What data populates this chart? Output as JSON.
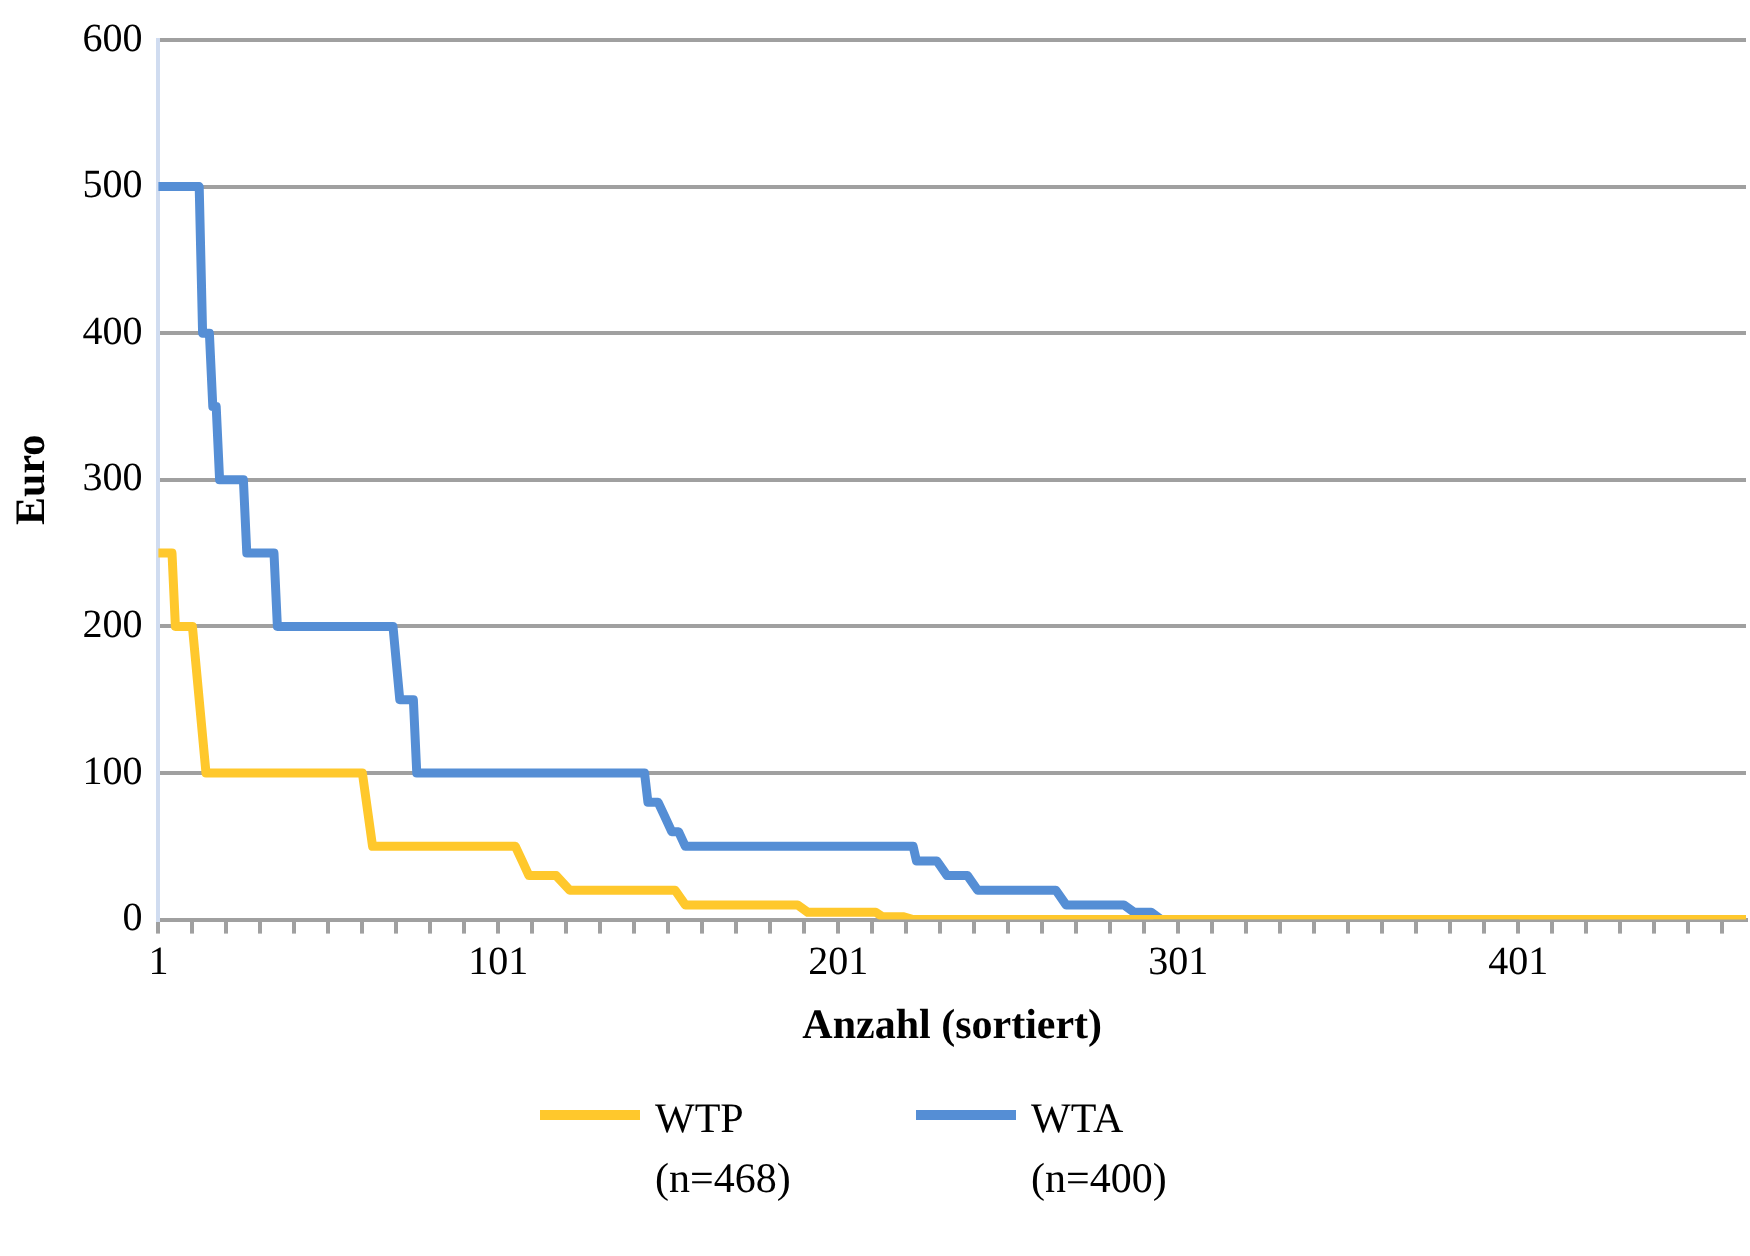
{
  "chart_data": {
    "type": "line",
    "xlabel": "Anzahl (sortiert)",
    "ylabel": "Euro",
    "xlim": [
      1,
      468
    ],
    "xticks": [
      1,
      {
        "value": 11,
        "label": null
      },
      {
        "value": 21,
        "label": null
      },
      {
        "value": 31,
        "label": null
      },
      {
        "value": 41,
        "label": null
      },
      {
        "value": 51,
        "label": null
      },
      {
        "value": 61,
        "label": null
      },
      {
        "value": 71,
        "label": null
      },
      {
        "value": 81,
        "label": null
      },
      {
        "value": 91,
        "label": null
      },
      101,
      {
        "value": 111,
        "label": null
      },
      {
        "value": 121,
        "label": null
      },
      {
        "value": 131,
        "label": null
      },
      {
        "value": 141,
        "label": null
      },
      {
        "value": 151,
        "label": null
      },
      {
        "value": 161,
        "label": null
      },
      {
        "value": 171,
        "label": null
      },
      {
        "value": 181,
        "label": null
      },
      {
        "value": 191,
        "label": null
      },
      201,
      {
        "value": 211,
        "label": null
      },
      {
        "value": 221,
        "label": null
      },
      {
        "value": 231,
        "label": null
      },
      {
        "value": 241,
        "label": null
      },
      {
        "value": 251,
        "label": null
      },
      {
        "value": 261,
        "label": null
      },
      {
        "value": 271,
        "label": null
      },
      {
        "value": 281,
        "label": null
      },
      {
        "value": 291,
        "label": null
      },
      301,
      {
        "value": 311,
        "label": null
      },
      {
        "value": 321,
        "label": null
      },
      {
        "value": 331,
        "label": null
      },
      {
        "value": 341,
        "label": null
      },
      {
        "value": 351,
        "label": null
      },
      {
        "value": 361,
        "label": null
      },
      {
        "value": 371,
        "label": null
      },
      {
        "value": 381,
        "label": null
      },
      {
        "value": 391,
        "label": null
      },
      401,
      {
        "value": 411,
        "label": null
      },
      {
        "value": 421,
        "label": null
      },
      {
        "value": 431,
        "label": null
      },
      {
        "value": 441,
        "label": null
      },
      {
        "value": 451,
        "label": null
      },
      {
        "value": 461,
        "label": null
      }
    ],
    "ylim": [
      0,
      600
    ],
    "yticks": [
      0,
      100,
      200,
      300,
      400,
      500,
      600
    ],
    "grid": "y",
    "legend": "bottom",
    "marker": "none",
    "line_style": "solid",
    "series": [
      {
        "name": "WTP (n=468)",
        "color": "#ffc82c",
        "x": [
          1,
          5,
          6,
          11,
          15,
          61,
          64,
          106,
          108,
          110,
          118,
          122,
          153,
          156,
          189,
          192,
          212,
          214,
          220,
          223,
          468
        ],
        "values": [
          250,
          250,
          200,
          200,
          100,
          100,
          50,
          50,
          40,
          30,
          30,
          20,
          20,
          10,
          10,
          5,
          5,
          2,
          2,
          0,
          0
        ]
      },
      {
        "name": "WTA (n=400)",
        "color": "#558ed5",
        "x": [
          1,
          13,
          14,
          16,
          17,
          18,
          19,
          26,
          27,
          35,
          36,
          70,
          72,
          76,
          77,
          144,
          145,
          148,
          150,
          152,
          154,
          156,
          223,
          224,
          230,
          233,
          239,
          242,
          265,
          268,
          285,
          288,
          293,
          296,
          400
        ],
        "values": [
          500,
          500,
          400,
          400,
          350,
          350,
          300,
          300,
          250,
          250,
          200,
          200,
          150,
          150,
          100,
          100,
          80,
          80,
          70,
          60,
          60,
          50,
          50,
          40,
          40,
          30,
          30,
          20,
          20,
          10,
          10,
          5,
          5,
          0,
          0
        ]
      }
    ]
  }
}
